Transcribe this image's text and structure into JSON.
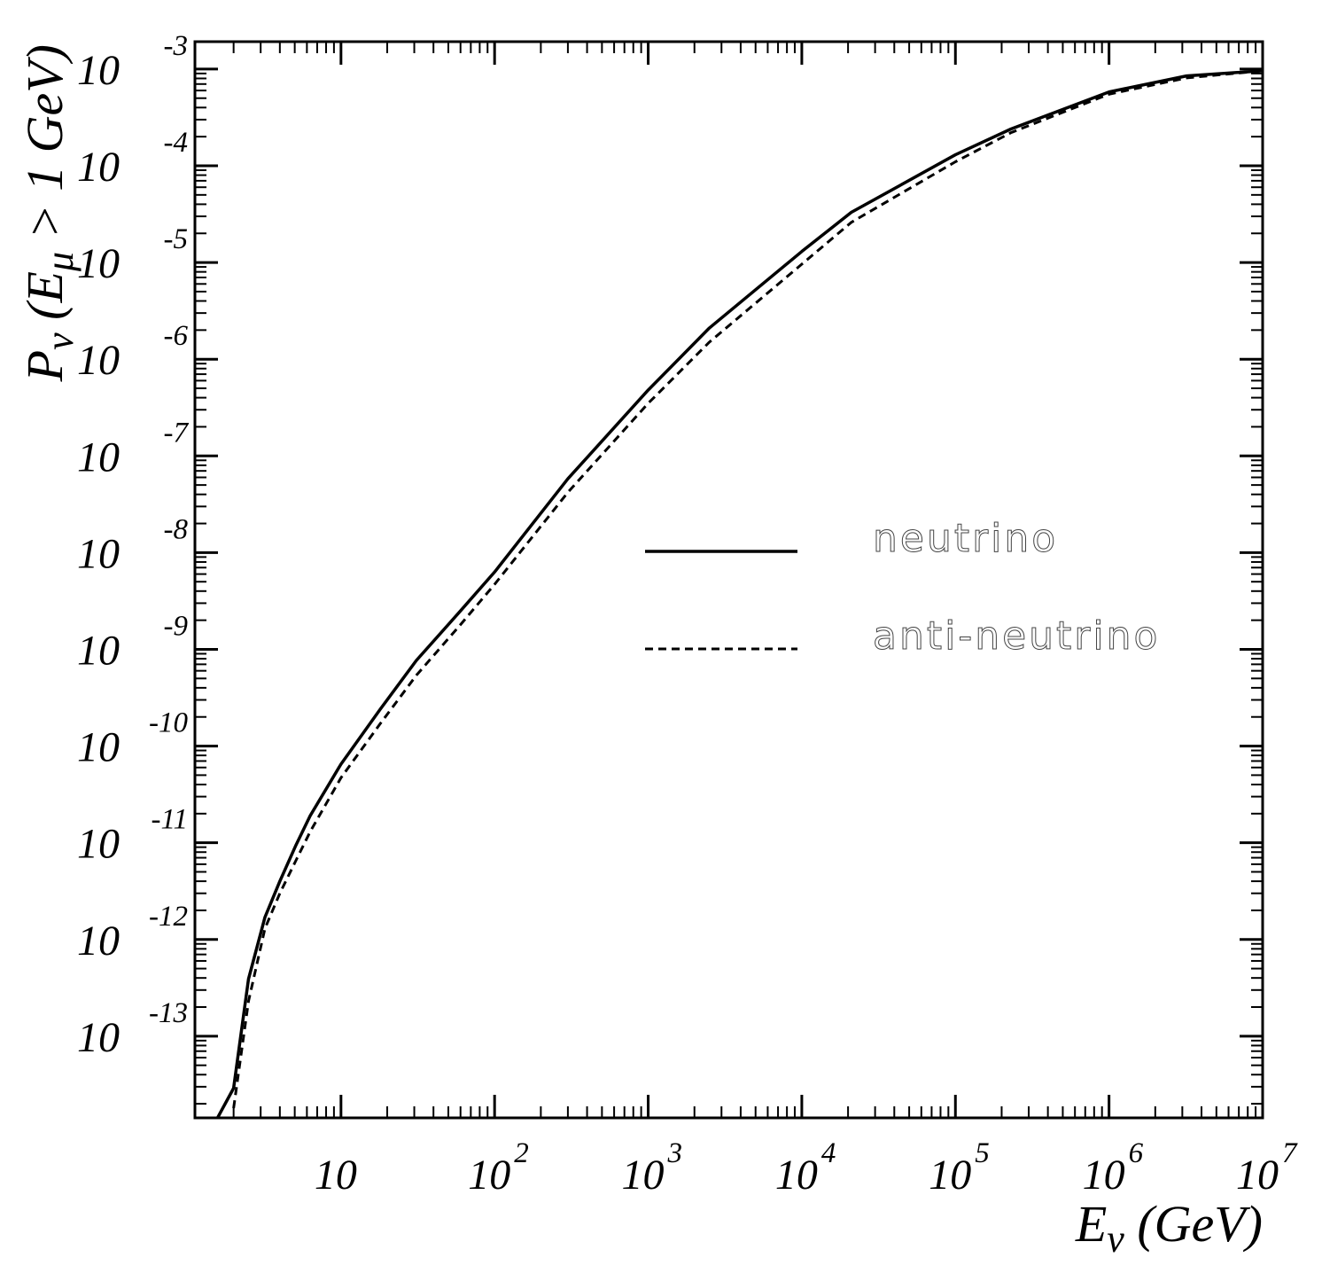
{
  "chart_data": {
    "type": "line",
    "xlabel": [
      {
        "text": "E"
      },
      {
        "text": "ν",
        "sub": true
      },
      {
        "text": " (GeV)"
      }
    ],
    "ylabel": [
      {
        "text": "P"
      },
      {
        "text": "ν",
        "sub": true
      },
      {
        "text": " (E"
      },
      {
        "text": "μ",
        "sub": true
      },
      {
        "text": " > 1 GeV)"
      }
    ],
    "x": [
      1.56,
      2.0,
      2.5,
      3.2,
      4.0,
      5.1,
      6.3,
      10,
      18,
      31,
      60,
      100,
      300,
      1000,
      2500,
      10000,
      21000,
      100000,
      230000,
      1000000,
      3200000,
      10000000
    ],
    "series": [
      {
        "name": "neutrino",
        "color": "#000000",
        "dash": false,
        "values": [
          1.4e-14,
          2.9e-14,
          3.9e-13,
          1.7e-12,
          4e-12,
          9.5e-12,
          1.9e-11,
          6.5e-11,
          2.4e-10,
          7.7e-10,
          2.5e-09,
          6.3e-09,
          5.8e-08,
          4.8e-07,
          2.1e-06,
          1.3e-05,
          3.3e-05,
          0.00013,
          0.00024,
          0.00058,
          0.00085,
          0.00096
        ]
      },
      {
        "name": "anti-neutrino",
        "color": "#000000",
        "dash": true,
        "values": [
          null,
          1.8e-14,
          2.3e-13,
          1.3e-12,
          3e-12,
          6.6e-12,
          1.3e-11,
          4.7e-11,
          1.7e-10,
          5.4e-10,
          1.8e-09,
          4.7e-09,
          4.2e-08,
          3.5e-07,
          1.5e-06,
          9.6e-06,
          2.6e-05,
          0.00011,
          0.00022,
          0.00055,
          0.00081,
          0.00096
        ]
      }
    ],
    "xscale": "log",
    "yscale": "log",
    "xlim": [
      1.12,
      10000000
    ],
    "ylim": [
      1.43e-14,
      0.00192
    ],
    "xticks": [
      10,
      {
        "value": 100,
        "label": "10",
        "exponent": "2"
      },
      {
        "value": 1000,
        "label": "10",
        "exponent": "3"
      },
      {
        "value": 10000,
        "label": "10",
        "exponent": "4"
      },
      {
        "value": 100000,
        "label": "10",
        "exponent": "5"
      },
      {
        "value": 1000000,
        "label": "10",
        "exponent": "6"
      },
      {
        "value": 10000000,
        "label": "10",
        "exponent": "7"
      }
    ],
    "yticks": [
      {
        "value": 0.001,
        "label": "10",
        "exponent": "-3"
      },
      {
        "value": 0.0001,
        "label": "10",
        "exponent": "-4"
      },
      {
        "value": 1e-05,
        "label": "10",
        "exponent": "-5"
      },
      {
        "value": 1e-06,
        "label": "10",
        "exponent": "-6"
      },
      {
        "value": 1e-07,
        "label": "10",
        "exponent": "-7"
      },
      {
        "value": 1e-08,
        "label": "10",
        "exponent": "-8"
      },
      {
        "value": 1e-09,
        "label": "10",
        "exponent": "-9"
      },
      {
        "value": 1e-10,
        "label": "10",
        "exponent": "-10"
      },
      {
        "value": 1e-11,
        "label": "10",
        "exponent": "-11"
      },
      {
        "value": 1e-12,
        "label": "10",
        "exponent": "-12"
      },
      {
        "value": 1e-13,
        "label": "10",
        "exponent": "-13"
      }
    ],
    "minor_ticks": true,
    "grid": false,
    "legend": "right"
  }
}
